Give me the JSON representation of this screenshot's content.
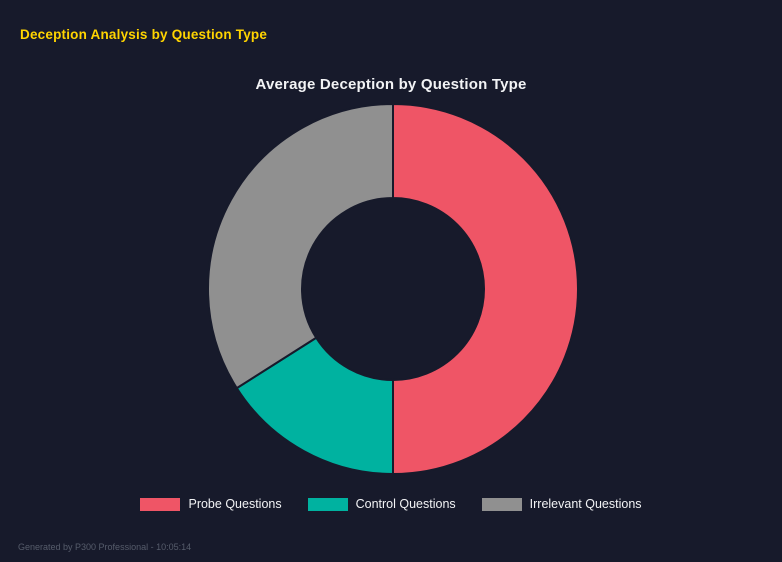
{
  "page": {
    "title": "Deception Analysis by Question Type",
    "footer": "Generated by P300 Professional - 10:05:14"
  },
  "colors": {
    "background": "#171a2b",
    "page_title": "#ffd400",
    "chart_title": "#f2f3f5",
    "legend_text": "#f2f3f5",
    "footer_text": "#565c6b"
  },
  "chart_data": {
    "type": "pie",
    "subtype": "doughnut",
    "title": "Average Deception by Question Type",
    "legend_position": "bottom",
    "start_angle_deg": 0,
    "direction": "clockwise",
    "inner_radius_ratio": 0.49,
    "segments": [
      {
        "label": "Probe Questions",
        "value": 50,
        "color": "#ef5566"
      },
      {
        "label": "Control Questions",
        "value": 16,
        "color": "#00b2a0"
      },
      {
        "label": "Irrelevant Questions",
        "value": 34,
        "color": "#909090"
      }
    ],
    "values_unit": "percent of circle (estimated from arc angles)"
  }
}
